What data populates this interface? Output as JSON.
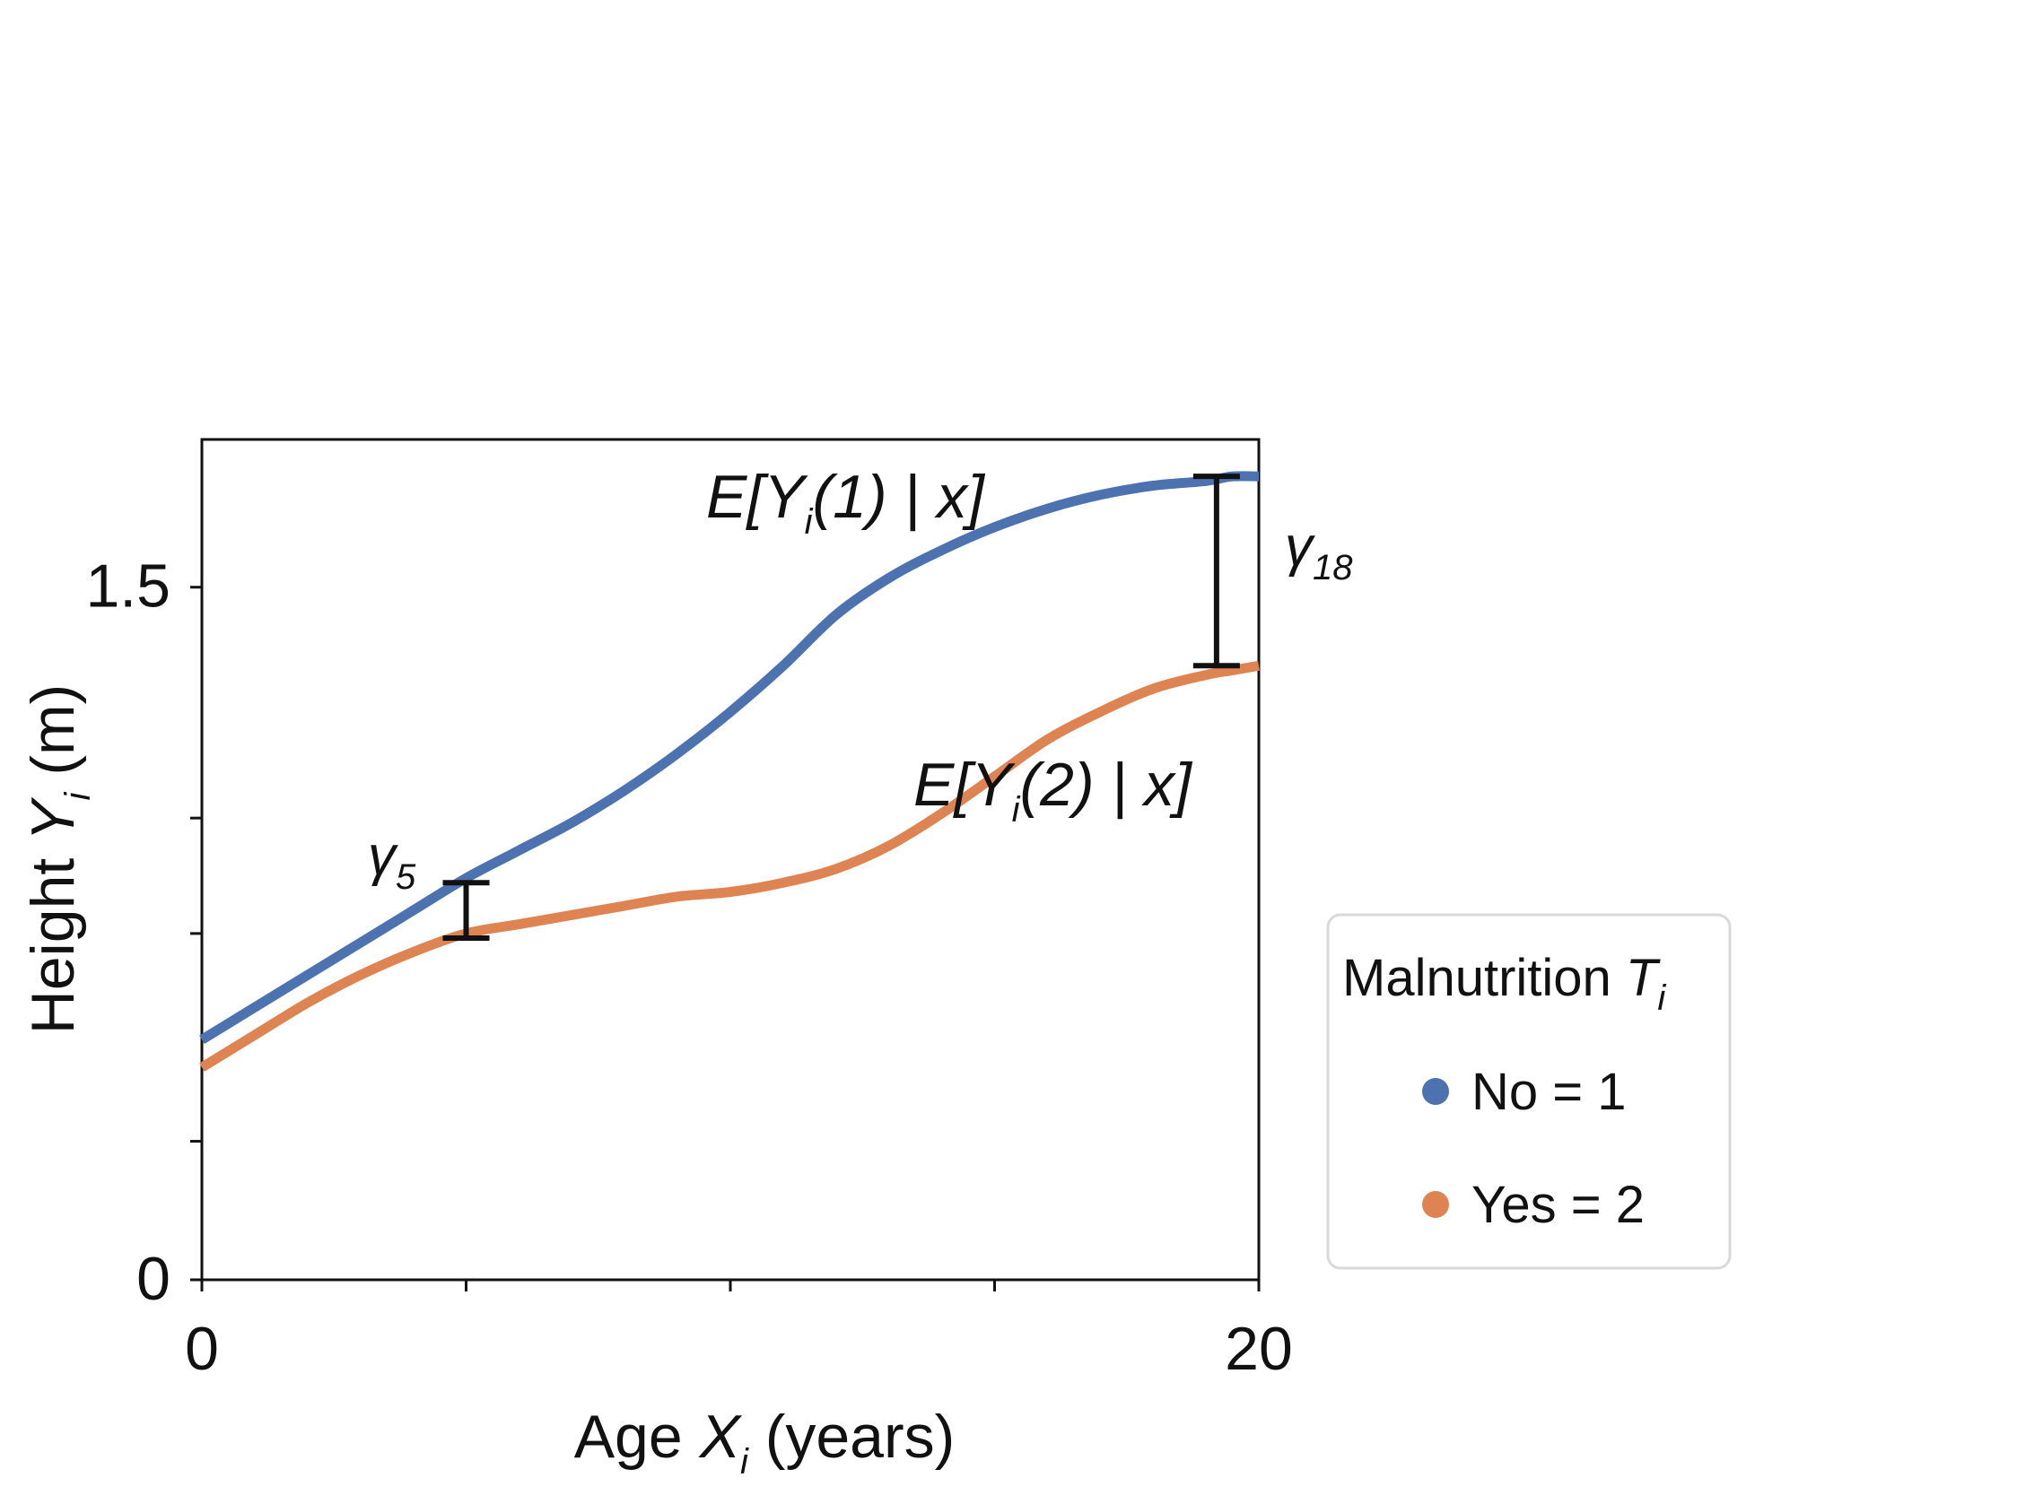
{
  "chart_data": {
    "type": "line",
    "xlabel": {
      "main": "Age ",
      "var": "X",
      "sub": "i",
      "suffix": " (years)"
    },
    "ylabel": {
      "main": "Height ",
      "var": "Y",
      "sub": "i",
      "suffix": " (m)"
    },
    "xlim": [
      0,
      20
    ],
    "ylim": [
      0,
      1.82
    ],
    "x_ticks": [
      0,
      5,
      10,
      15,
      20
    ],
    "x_tick_labels": [
      "0",
      "",
      "",
      "",
      "20"
    ],
    "y_ticks": [
      0,
      0.3,
      0.75,
      1.0,
      1.5
    ],
    "y_tick_labels": [
      "0",
      "",
      "",
      "",
      "1.5"
    ],
    "series": [
      {
        "name": "No = 1",
        "color": "#4c72b0",
        "x": [
          0,
          1,
          2,
          3,
          4,
          5,
          6,
          7,
          8,
          9,
          10,
          11,
          12,
          13,
          14,
          15,
          16,
          17,
          18,
          19,
          19.5,
          20
        ],
        "y": [
          0.52,
          0.59,
          0.66,
          0.73,
          0.8,
          0.87,
          0.93,
          0.99,
          1.06,
          1.14,
          1.23,
          1.33,
          1.44,
          1.52,
          1.58,
          1.63,
          1.67,
          1.7,
          1.72,
          1.73,
          1.74,
          1.74
        ]
      },
      {
        "name": "Yes = 2",
        "color": "#dd8452",
        "x": [
          0,
          1,
          2,
          3,
          4,
          5,
          6,
          7,
          8,
          9,
          10,
          11,
          12,
          13,
          14,
          15,
          16,
          17,
          18,
          19,
          19.5,
          20
        ],
        "y": [
          0.46,
          0.53,
          0.6,
          0.66,
          0.71,
          0.75,
          0.77,
          0.79,
          0.81,
          0.83,
          0.84,
          0.86,
          0.89,
          0.94,
          1.01,
          1.09,
          1.17,
          1.23,
          1.28,
          1.31,
          1.32,
          1.33
        ]
      }
    ],
    "annotations": {
      "curve1": {
        "pre": "E[Y",
        "sub": "i",
        "post": "(1) | x]"
      },
      "curve2": {
        "pre": "E[Y",
        "sub": "i",
        "post": "(2) | x]"
      },
      "gamma5": {
        "main": "γ",
        "sub": "5",
        "x": 5,
        "y_low": 0.74,
        "y_high": 0.86
      },
      "gamma18": {
        "main": "γ",
        "sub": "18",
        "x": 19.2,
        "y_low": 1.33,
        "y_high": 1.74
      }
    },
    "legend": {
      "position": "right",
      "title_main": "Malnutrition ",
      "title_var": "T",
      "title_sub": "i",
      "entries": [
        {
          "label": "No = 1",
          "color": "#4c72b0"
        },
        {
          "label": "Yes = 2",
          "color": "#dd8452"
        }
      ]
    }
  }
}
